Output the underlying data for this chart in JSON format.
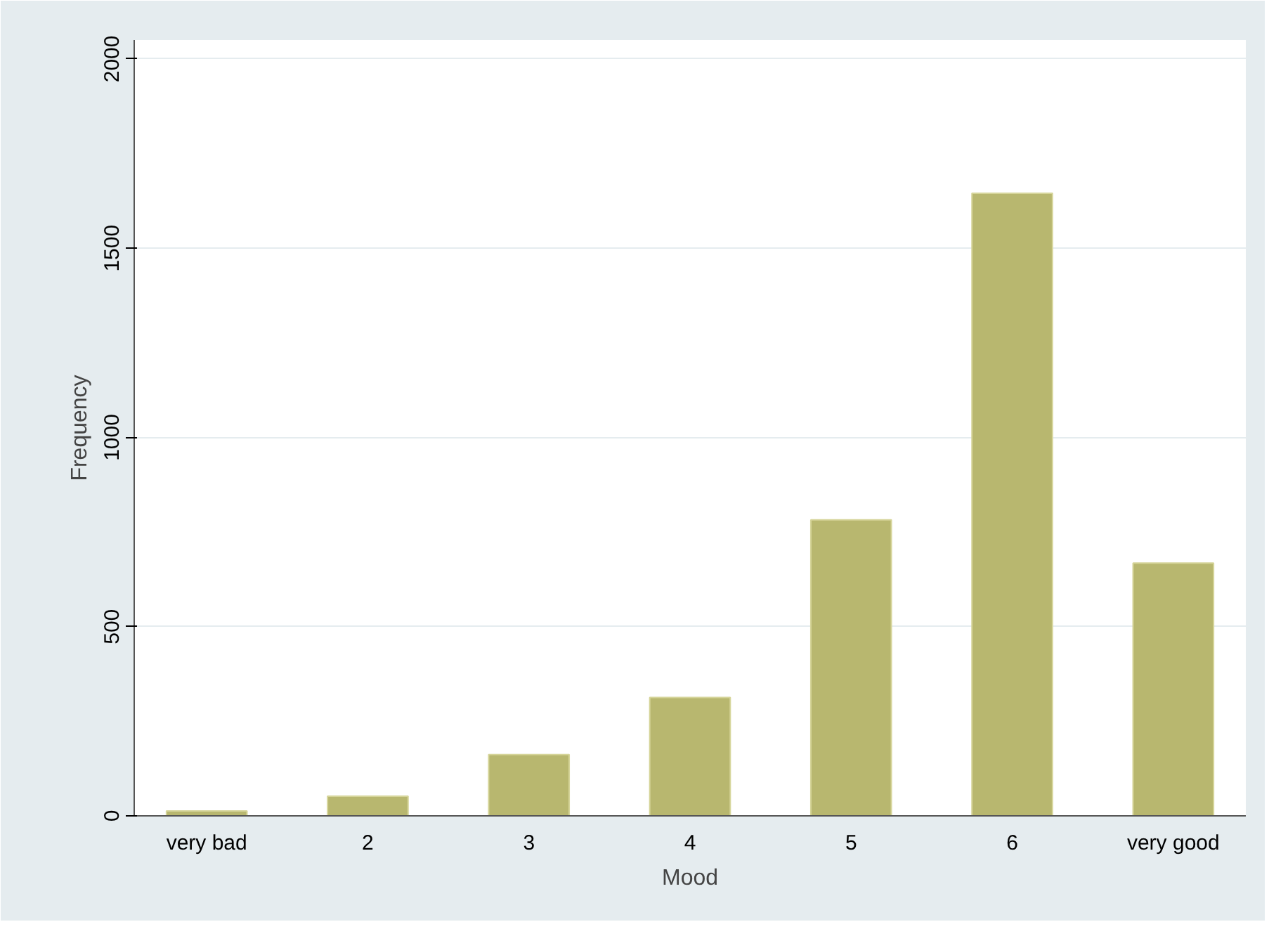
{
  "chart_data": {
    "type": "bar",
    "xlabel": "Mood",
    "ylabel": "Frequency",
    "categories": [
      "very bad",
      "2",
      "3",
      "4",
      "5",
      "6",
      "very good"
    ],
    "values": [
      13,
      52,
      162,
      313,
      782,
      1645,
      668
    ],
    "color": "#b8b76f",
    "ylim": [
      0,
      2050
    ],
    "yticks": [
      0,
      500,
      1000,
      1500,
      2000
    ],
    "grid": "y"
  }
}
